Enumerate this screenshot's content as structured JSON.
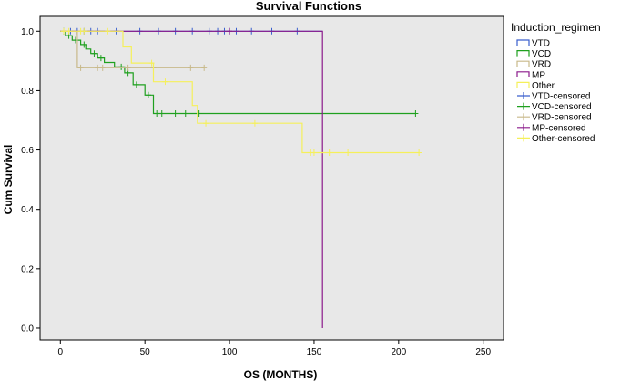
{
  "chart_data": {
    "type": "line",
    "title": "Survival Functions",
    "xlabel": "OS (MONTHS)",
    "ylabel": "Cum Survival",
    "xlim": [
      -12,
      262
    ],
    "ylim": [
      -0.04,
      1.05
    ],
    "xticks": [
      "0",
      "50",
      "100",
      "150",
      "200",
      "250"
    ],
    "xtick_values": [
      0,
      50,
      100,
      150,
      200,
      250
    ],
    "yticks": [
      "0.0",
      "0.2",
      "0.4",
      "0.6",
      "0.8",
      "1.0"
    ],
    "ytick_values": [
      0.0,
      0.2,
      0.4,
      0.6,
      0.8,
      1.0
    ],
    "grid": false,
    "legend": {
      "title": "Induction_regimen",
      "placement": "right",
      "entries": [
        {
          "label": "VTD",
          "kind": "line",
          "color": "#3a5fcd"
        },
        {
          "label": "VCD",
          "kind": "line",
          "color": "#1fa01f"
        },
        {
          "label": "VRD",
          "kind": "line",
          "color": "#c8b98a"
        },
        {
          "label": "MP",
          "kind": "line",
          "color": "#8b1a8b"
        },
        {
          "label": "Other",
          "kind": "line",
          "color": "#f5f05a"
        },
        {
          "label": "VTD-censored",
          "kind": "censor",
          "color": "#3a5fcd"
        },
        {
          "label": "VCD-censored",
          "kind": "censor",
          "color": "#1fa01f"
        },
        {
          "label": "VRD-censored",
          "kind": "censor",
          "color": "#c8b98a"
        },
        {
          "label": "MP-censored",
          "kind": "censor",
          "color": "#8b1a8b"
        },
        {
          "label": "Other-censored",
          "kind": "censor",
          "color": "#f5f05a"
        }
      ]
    },
    "series": [
      {
        "name": "VTD",
        "color": "#3a5fcd",
        "steps": [
          [
            0,
            1.0
          ],
          [
            155,
            1.0
          ]
        ],
        "censored": [
          [
            2,
            1.0
          ],
          [
            6,
            1.0
          ],
          [
            10,
            1.0
          ],
          [
            14,
            1.0
          ],
          [
            18,
            1.0
          ],
          [
            22,
            1.0
          ],
          [
            33,
            1.0
          ],
          [
            47,
            1.0
          ],
          [
            58,
            1.0
          ],
          [
            68,
            1.0
          ],
          [
            78,
            1.0
          ],
          [
            88,
            1.0
          ],
          [
            93,
            1.0
          ],
          [
            97,
            1.0
          ],
          [
            100,
            1.0
          ],
          [
            104,
            1.0
          ],
          [
            113,
            1.0
          ],
          [
            125,
            1.0
          ],
          [
            140,
            1.0
          ]
        ]
      },
      {
        "name": "VCD",
        "color": "#1fa01f",
        "steps": [
          [
            0,
            1.0
          ],
          [
            3,
            1.0
          ],
          [
            3,
            0.985
          ],
          [
            7,
            0.985
          ],
          [
            7,
            0.97
          ],
          [
            12,
            0.97
          ],
          [
            12,
            0.955
          ],
          [
            15,
            0.955
          ],
          [
            15,
            0.94
          ],
          [
            18,
            0.94
          ],
          [
            18,
            0.925
          ],
          [
            22,
            0.925
          ],
          [
            22,
            0.91
          ],
          [
            26,
            0.91
          ],
          [
            26,
            0.895
          ],
          [
            32,
            0.895
          ],
          [
            32,
            0.88
          ],
          [
            38,
            0.88
          ],
          [
            38,
            0.86
          ],
          [
            43,
            0.86
          ],
          [
            43,
            0.82
          ],
          [
            50,
            0.82
          ],
          [
            50,
            0.785
          ],
          [
            55,
            0.785
          ],
          [
            55,
            0.723
          ],
          [
            210,
            0.723
          ]
        ],
        "censored": [
          [
            2,
            1.0
          ],
          [
            5,
            0.985
          ],
          [
            9,
            0.97
          ],
          [
            14,
            0.955
          ],
          [
            20,
            0.925
          ],
          [
            24,
            0.91
          ],
          [
            36,
            0.88
          ],
          [
            40,
            0.86
          ],
          [
            45,
            0.82
          ],
          [
            52,
            0.785
          ],
          [
            57,
            0.723
          ],
          [
            60,
            0.723
          ],
          [
            68,
            0.723
          ],
          [
            74,
            0.723
          ],
          [
            82,
            0.723
          ],
          [
            210,
            0.723
          ]
        ]
      },
      {
        "name": "VRD",
        "color": "#c8b98a",
        "steps": [
          [
            0,
            1.0
          ],
          [
            10,
            1.0
          ],
          [
            10,
            0.877
          ],
          [
            85,
            0.877
          ]
        ],
        "censored": [
          [
            12,
            0.877
          ],
          [
            22,
            0.877
          ],
          [
            25,
            0.877
          ],
          [
            40,
            0.877
          ],
          [
            55,
            0.877
          ],
          [
            77,
            0.877
          ],
          [
            85,
            0.877
          ]
        ]
      },
      {
        "name": "MP",
        "color": "#8b1a8b",
        "steps": [
          [
            0,
            1.0
          ],
          [
            155,
            1.0
          ],
          [
            155,
            0.0
          ]
        ],
        "censored": [
          [
            100,
            1.0
          ]
        ]
      },
      {
        "name": "Other",
        "color": "#f5f05a",
        "steps": [
          [
            0,
            1.0
          ],
          [
            37,
            1.0
          ],
          [
            37,
            0.947
          ],
          [
            42,
            0.947
          ],
          [
            42,
            0.893
          ],
          [
            55,
            0.893
          ],
          [
            55,
            0.83
          ],
          [
            78,
            0.83
          ],
          [
            78,
            0.75
          ],
          [
            81,
            0.75
          ],
          [
            81,
            0.69
          ],
          [
            143,
            0.69
          ],
          [
            143,
            0.591
          ],
          [
            212,
            0.591
          ]
        ],
        "censored": [
          [
            2,
            1.0
          ],
          [
            5,
            1.0
          ],
          [
            12,
            1.0
          ],
          [
            14,
            1.0
          ],
          [
            28,
            1.0
          ],
          [
            54,
            0.893
          ],
          [
            62,
            0.83
          ],
          [
            86,
            0.69
          ],
          [
            115,
            0.69
          ],
          [
            148,
            0.591
          ],
          [
            150,
            0.591
          ],
          [
            159,
            0.591
          ],
          [
            170,
            0.591
          ],
          [
            212,
            0.591
          ]
        ]
      }
    ]
  }
}
